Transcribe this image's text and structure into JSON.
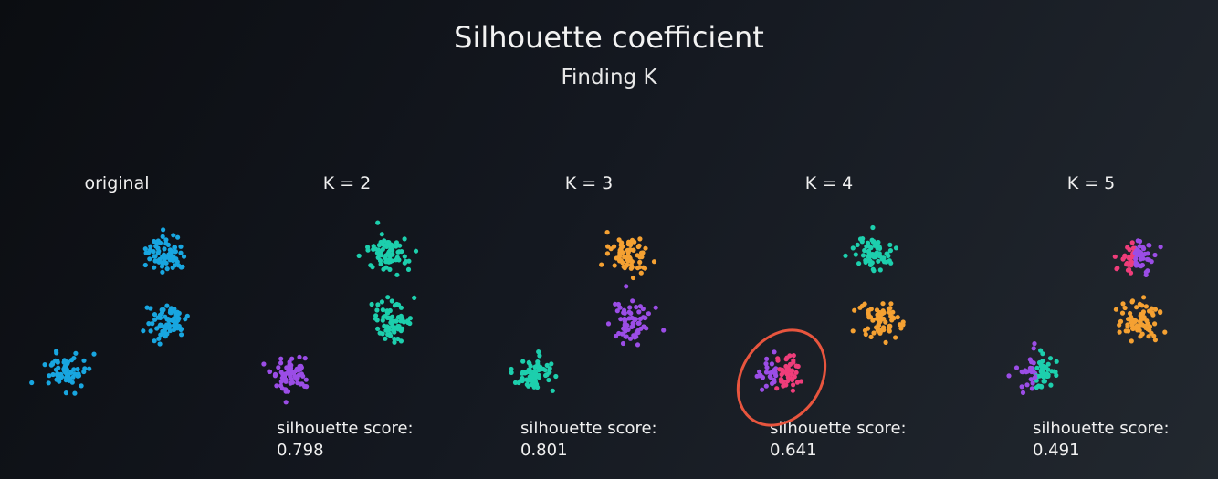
{
  "title": "Silhouette coefficient",
  "subtitle": "Finding K",
  "colors": {
    "blue": "#18a6e0",
    "teal": "#1dcfad",
    "purple": "#9b4de6",
    "orange": "#f5a132",
    "pink": "#ef3d7a",
    "highlight": "#e8553e"
  },
  "panels": [
    {
      "label": "original",
      "score_label": "",
      "score_value": "",
      "clusters": [
        "blue",
        "blue",
        "blue"
      ]
    },
    {
      "label": "K = 2",
      "score_label": "silhouette score:",
      "score_value": "0.798",
      "clusters": [
        "teal",
        "teal",
        "purple"
      ]
    },
    {
      "label": "K = 3",
      "score_label": "silhouette score:",
      "score_value": "0.801",
      "clusters": [
        "orange",
        "purple",
        "teal"
      ]
    },
    {
      "label": "K = 4",
      "score_label": "silhouette score:",
      "score_value": "0.641",
      "clusters": [
        "teal",
        "orange",
        "purple+pink"
      ],
      "highlight_cluster": 2
    },
    {
      "label": "K = 5",
      "score_label": "silhouette score:",
      "score_value": "0.491",
      "clusters": [
        "pink+purple",
        "orange",
        "purple+teal"
      ]
    }
  ]
}
